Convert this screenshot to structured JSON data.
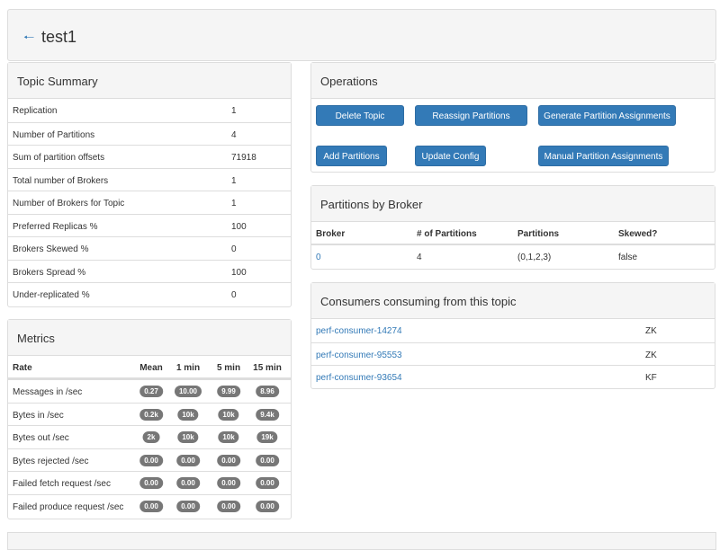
{
  "header": {
    "title": "test1"
  },
  "topic_summary": {
    "title": "Topic Summary",
    "rows": [
      [
        "Replication",
        "1"
      ],
      [
        "Number of Partitions",
        "4"
      ],
      [
        "Sum of partition offsets",
        "71918"
      ],
      [
        "Total number of Brokers",
        "1"
      ],
      [
        "Number of Brokers for Topic",
        "1"
      ],
      [
        "Preferred Replicas %",
        "100"
      ],
      [
        "Brokers Skewed %",
        "0"
      ],
      [
        "Brokers Spread %",
        "100"
      ],
      [
        "Under-replicated %",
        "0"
      ]
    ]
  },
  "metrics": {
    "title": "Metrics",
    "columns": [
      "Rate",
      "Mean",
      "1 min",
      "5 min",
      "15 min"
    ],
    "rows": [
      [
        "Messages in /sec",
        "0.27",
        "10.00",
        "9.99",
        "8.96"
      ],
      [
        "Bytes in /sec",
        "0.2k",
        "10k",
        "10k",
        "9.4k"
      ],
      [
        "Bytes out /sec",
        "2k",
        "10k",
        "10k",
        "19k"
      ],
      [
        "Bytes rejected /sec",
        "0.00",
        "0.00",
        "0.00",
        "0.00"
      ],
      [
        "Failed fetch request /sec",
        "0.00",
        "0.00",
        "0.00",
        "0.00"
      ],
      [
        "Failed produce request /sec",
        "0.00",
        "0.00",
        "0.00",
        "0.00"
      ]
    ]
  },
  "operations": {
    "title": "Operations",
    "buttons": [
      "Delete Topic",
      "Reassign Partitions",
      "Generate Partition Assignments",
      "Add Partitions",
      "Update Config",
      "Manual Partition Assignments"
    ]
  },
  "partitions_by_broker": {
    "title": "Partitions by Broker",
    "columns": [
      "Broker",
      "# of Partitions",
      "Partitions",
      "Skewed?"
    ],
    "rows": [
      [
        "0",
        "4",
        "(0,1,2,3)",
        "false"
      ]
    ]
  },
  "consumers": {
    "title": "Consumers consuming from this topic",
    "rows": [
      [
        "perf-consumer-14274",
        "ZK"
      ],
      [
        "perf-consumer-95553",
        "ZK"
      ],
      [
        "perf-consumer-93654",
        "KF"
      ]
    ]
  }
}
